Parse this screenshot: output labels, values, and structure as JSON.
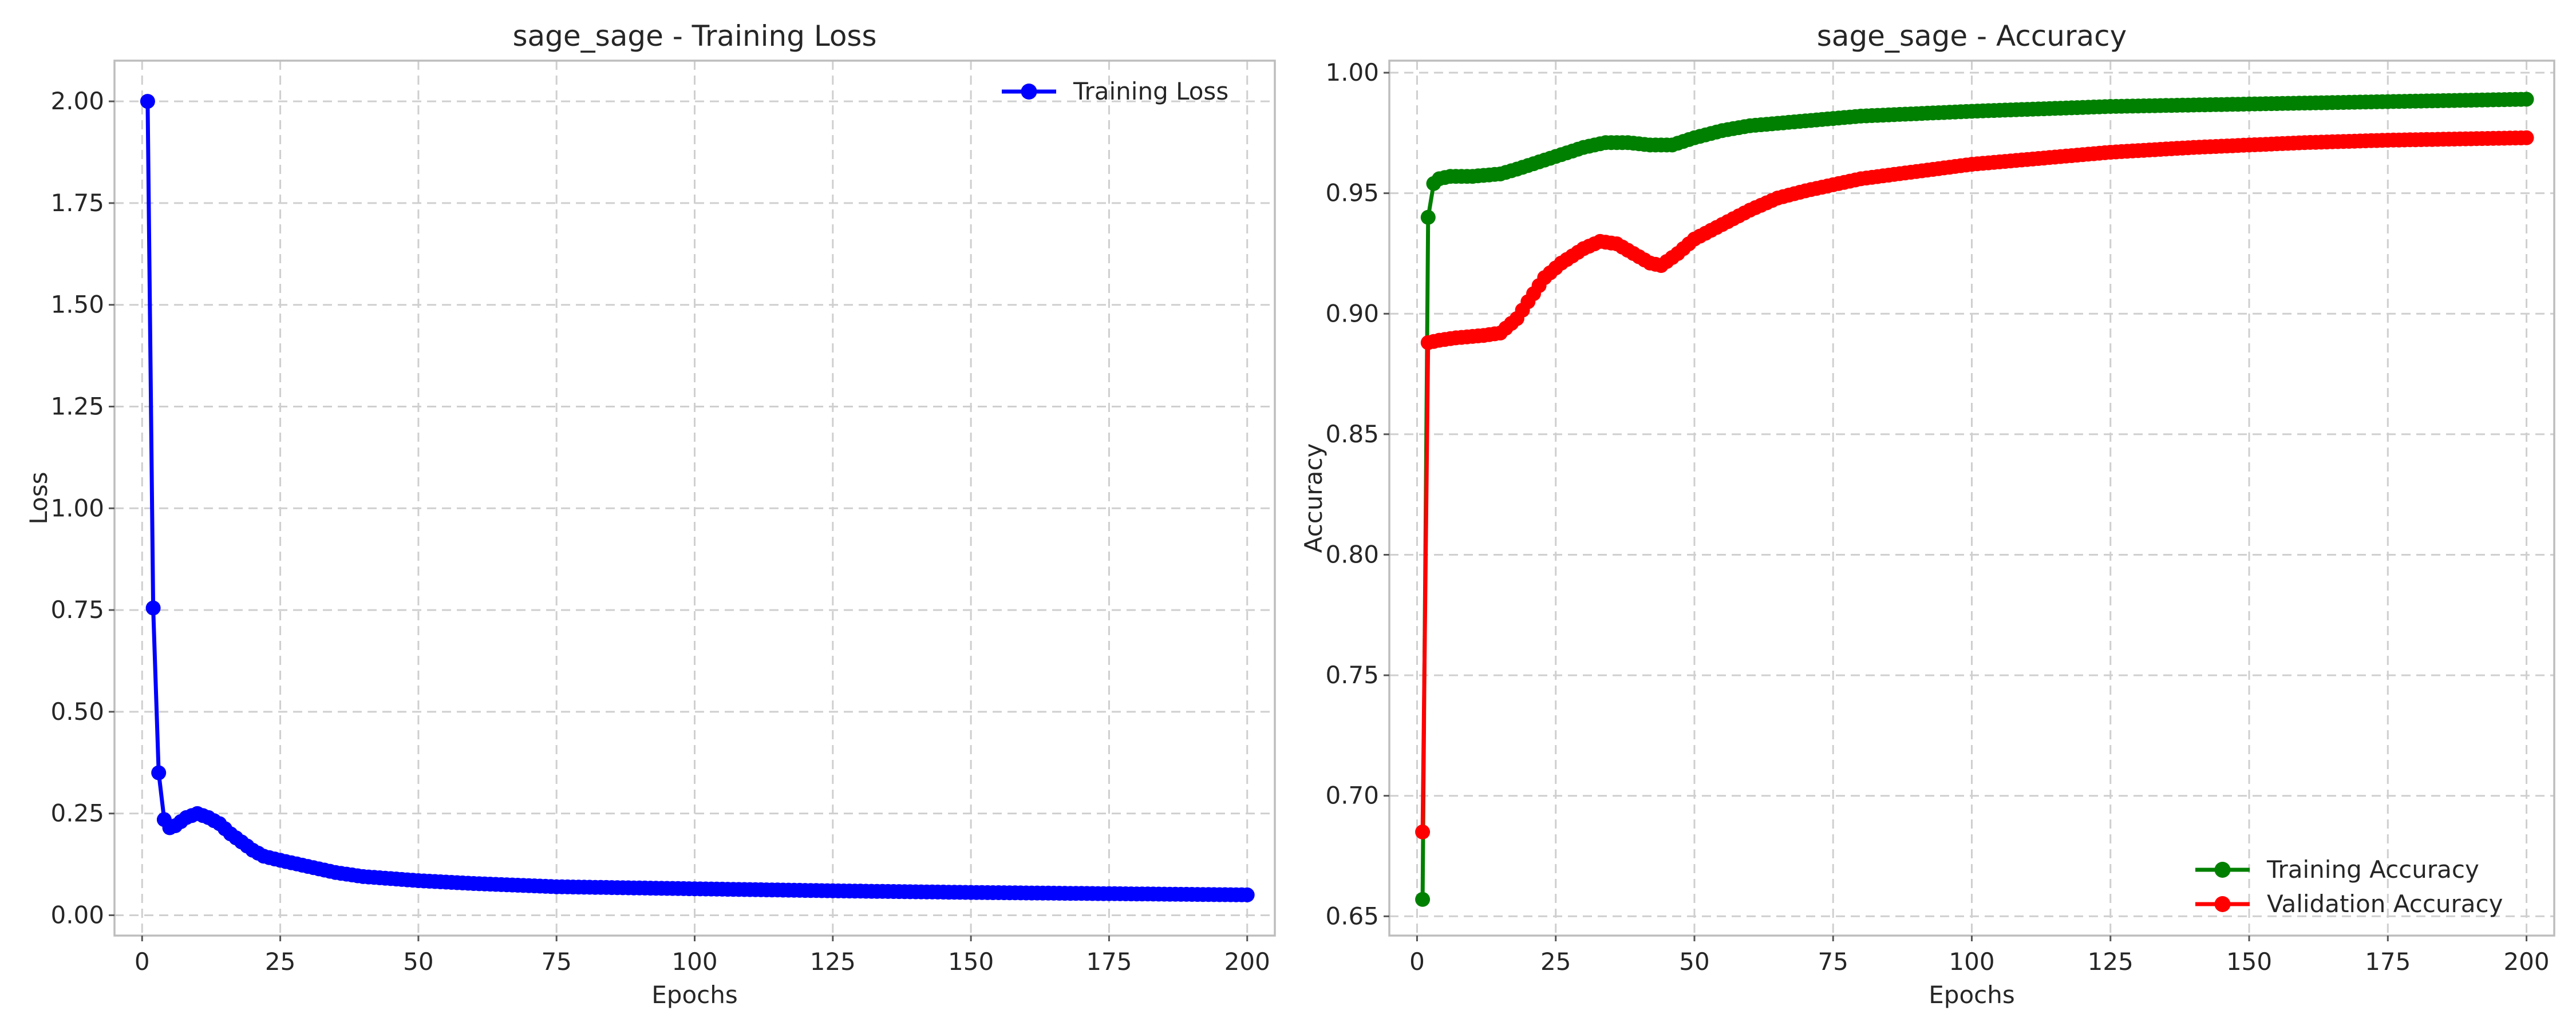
{
  "chart_data": [
    {
      "type": "line",
      "title": "sage_sage - Training Loss",
      "xlabel": "Epochs",
      "ylabel": "Loss",
      "xlim": [
        -5,
        205
      ],
      "ylim": [
        -0.05,
        2.1
      ],
      "xticks": [
        0,
        25,
        50,
        75,
        100,
        125,
        150,
        175,
        200
      ],
      "yticks": [
        0.0,
        0.25,
        0.5,
        0.75,
        1.0,
        1.25,
        1.5,
        1.75,
        2.0
      ],
      "ytick_labels": [
        "0.00",
        "0.25",
        "0.50",
        "0.75",
        "1.00",
        "1.25",
        "1.50",
        "1.75",
        "2.00"
      ],
      "xtick_labels": [
        "0",
        "25",
        "50",
        "75",
        "100",
        "125",
        "150",
        "175",
        "200"
      ],
      "grid": true,
      "legend_position": "top-right",
      "series": [
        {
          "name": "Training Loss",
          "color": "#0000ff",
          "marker": "circle",
          "keypoints": [
            [
              1,
              2.0
            ],
            [
              2,
              0.755
            ],
            [
              3,
              0.35
            ],
            [
              4,
              0.235
            ],
            [
              5,
              0.215
            ],
            [
              6,
              0.22
            ],
            [
              7,
              0.23
            ],
            [
              8,
              0.24
            ],
            [
              10,
              0.25
            ],
            [
              12,
              0.24
            ],
            [
              14,
              0.225
            ],
            [
              16,
              0.2
            ],
            [
              18,
              0.18
            ],
            [
              20,
              0.16
            ],
            [
              22,
              0.145
            ],
            [
              25,
              0.135
            ],
            [
              30,
              0.12
            ],
            [
              35,
              0.105
            ],
            [
              40,
              0.095
            ],
            [
              50,
              0.085
            ],
            [
              60,
              0.078
            ],
            [
              75,
              0.07
            ],
            [
              100,
              0.065
            ],
            [
              125,
              0.06
            ],
            [
              150,
              0.056
            ],
            [
              175,
              0.053
            ],
            [
              200,
              0.05
            ]
          ]
        }
      ]
    },
    {
      "type": "line",
      "title": "sage_sage - Accuracy",
      "xlabel": "Epochs",
      "ylabel": "Accuracy",
      "xlim": [
        -5,
        205
      ],
      "ylim": [
        0.642,
        1.005
      ],
      "xticks": [
        0,
        25,
        50,
        75,
        100,
        125,
        150,
        175,
        200
      ],
      "yticks": [
        0.65,
        0.7,
        0.75,
        0.8,
        0.85,
        0.9,
        0.95,
        1.0
      ],
      "ytick_labels": [
        "0.65",
        "0.70",
        "0.75",
        "0.80",
        "0.85",
        "0.90",
        "0.95",
        "1.00"
      ],
      "xtick_labels": [
        "0",
        "25",
        "50",
        "75",
        "100",
        "125",
        "150",
        "175",
        "200"
      ],
      "grid": true,
      "legend_position": "bottom-right",
      "series": [
        {
          "name": "Training Accuracy",
          "color": "#008000",
          "marker": "circle",
          "keypoints": [
            [
              1,
              0.657
            ],
            [
              2,
              0.94
            ],
            [
              3,
              0.954
            ],
            [
              4,
              0.956
            ],
            [
              6,
              0.957
            ],
            [
              10,
              0.957
            ],
            [
              15,
              0.958
            ],
            [
              18,
              0.96
            ],
            [
              22,
              0.963
            ],
            [
              26,
              0.966
            ],
            [
              30,
              0.969
            ],
            [
              34,
              0.971
            ],
            [
              38,
              0.971
            ],
            [
              42,
              0.97
            ],
            [
              46,
              0.97
            ],
            [
              50,
              0.973
            ],
            [
              55,
              0.976
            ],
            [
              60,
              0.978
            ],
            [
              70,
              0.98
            ],
            [
              80,
              0.982
            ],
            [
              100,
              0.984
            ],
            [
              125,
              0.986
            ],
            [
              150,
              0.987
            ],
            [
              175,
              0.988
            ],
            [
              200,
              0.989
            ]
          ]
        },
        {
          "name": "Validation Accuracy",
          "color": "#ff0000",
          "marker": "circle",
          "keypoints": [
            [
              1,
              0.685
            ],
            [
              2,
              0.888
            ],
            [
              4,
              0.889
            ],
            [
              7,
              0.89
            ],
            [
              12,
              0.891
            ],
            [
              15,
              0.892
            ],
            [
              18,
              0.898
            ],
            [
              20,
              0.905
            ],
            [
              23,
              0.915
            ],
            [
              26,
              0.921
            ],
            [
              30,
              0.927
            ],
            [
              33,
              0.93
            ],
            [
              36,
              0.929
            ],
            [
              39,
              0.925
            ],
            [
              42,
              0.921
            ],
            [
              44,
              0.92
            ],
            [
              47,
              0.925
            ],
            [
              50,
              0.931
            ],
            [
              55,
              0.937
            ],
            [
              60,
              0.943
            ],
            [
              65,
              0.948
            ],
            [
              70,
              0.951
            ],
            [
              80,
              0.956
            ],
            [
              90,
              0.959
            ],
            [
              100,
              0.962
            ],
            [
              110,
              0.964
            ],
            [
              125,
              0.967
            ],
            [
              140,
              0.969
            ],
            [
              160,
              0.971
            ],
            [
              175,
              0.972
            ],
            [
              200,
              0.973
            ]
          ]
        }
      ]
    }
  ]
}
